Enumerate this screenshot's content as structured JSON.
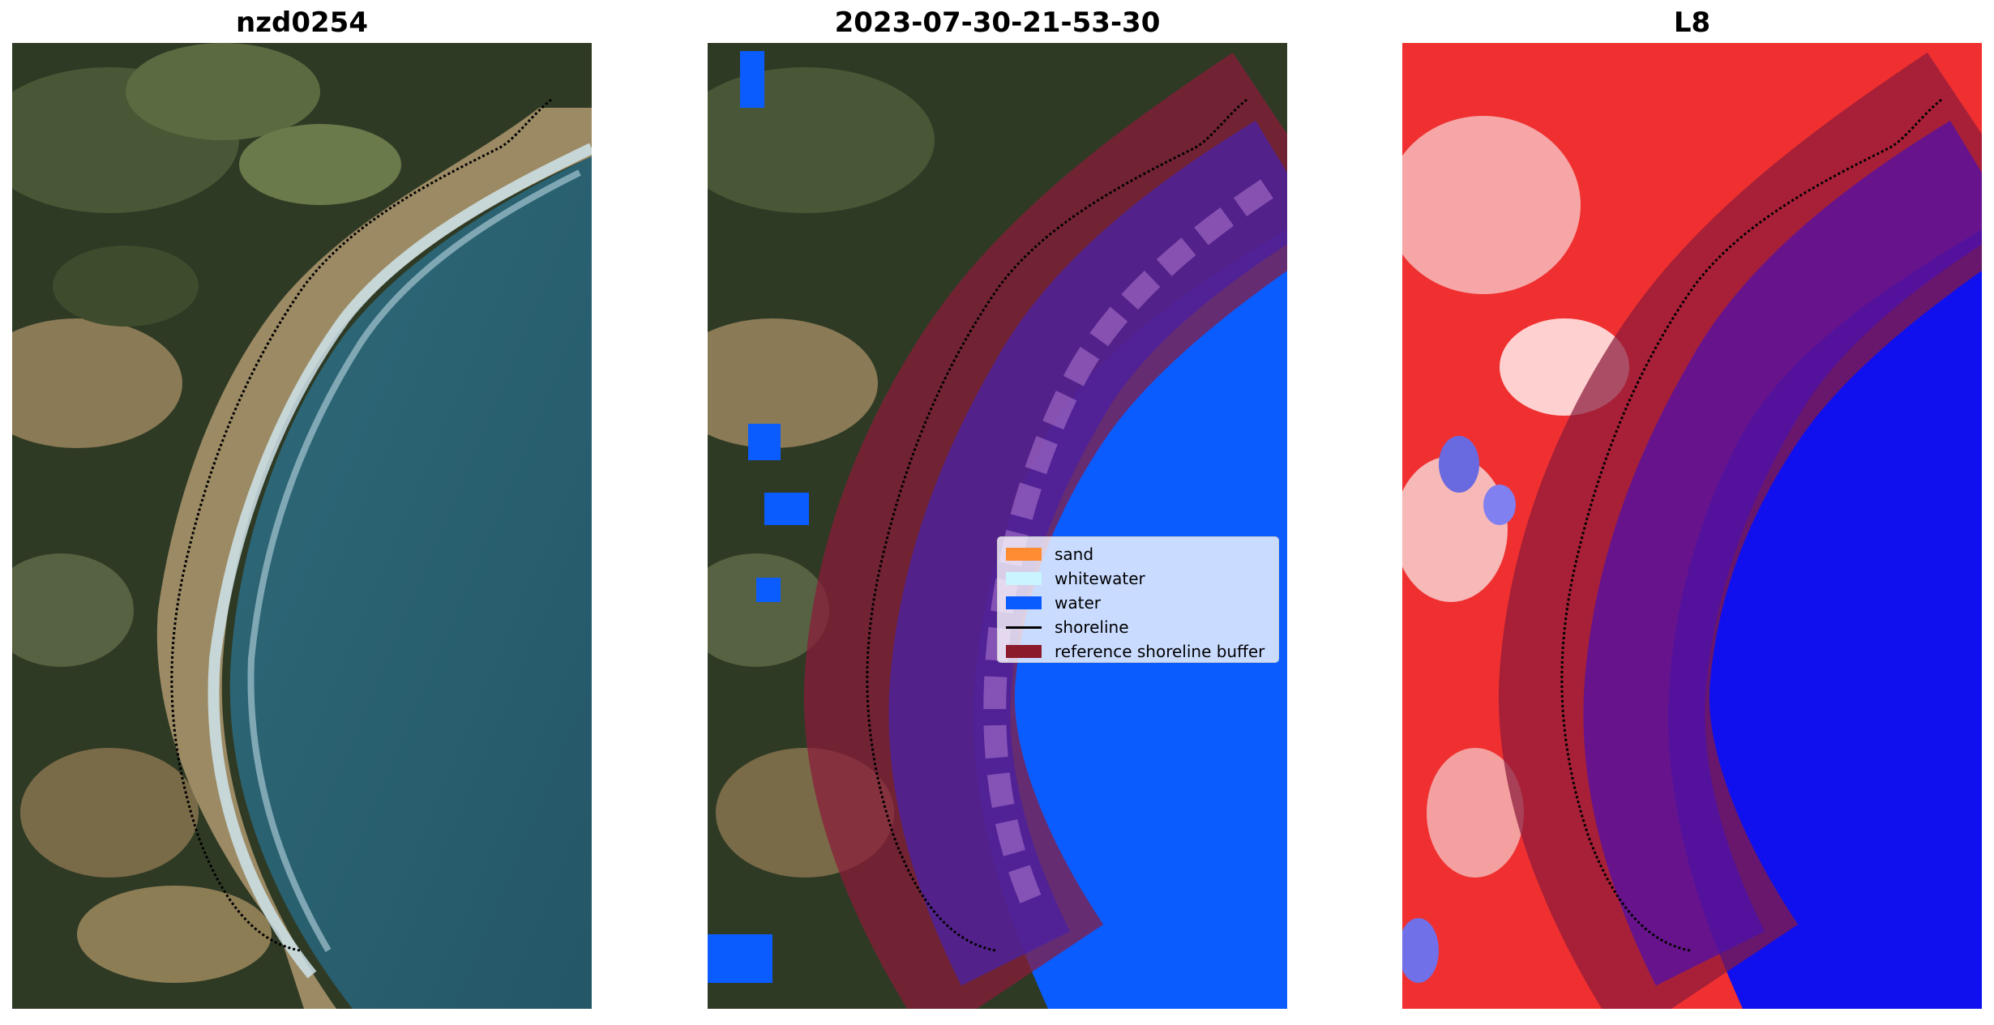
{
  "panels": [
    {
      "title": "nzd0254"
    },
    {
      "title": "2023-07-30-21-53-30"
    },
    {
      "title": "L8"
    }
  ],
  "legend": {
    "items": [
      {
        "label": "sand",
        "color": "#ff8c33",
        "kind": "patch"
      },
      {
        "label": "whitewater",
        "color": "#c8f5ff",
        "kind": "patch"
      },
      {
        "label": "water",
        "color": "#0a5cff",
        "kind": "patch"
      },
      {
        "label": "shoreline",
        "color": "#000000",
        "kind": "line"
      },
      {
        "label": "reference shoreline buffer",
        "color": "#8b1a2a",
        "kind": "patch"
      }
    ]
  }
}
